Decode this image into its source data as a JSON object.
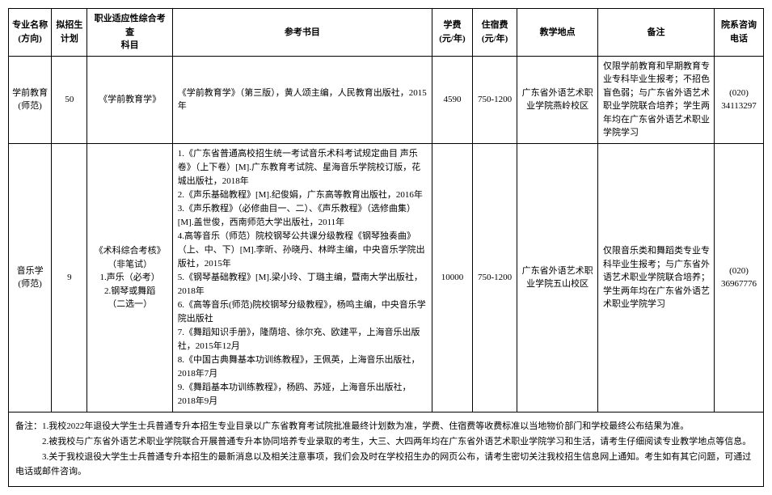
{
  "headers": {
    "major": "专业名称\n(方向)",
    "plan": "拟招生\n计划",
    "subject": "职业适应性综合考查\n科目",
    "books": "参考书目",
    "tuition": "学费\n(元/年)",
    "dorm": "住宿费\n(元/年)",
    "location": "教学地点",
    "remark": "备注",
    "phone": "院系咨询\n电话"
  },
  "rows": [
    {
      "major": "学前教育\n(师范)",
      "plan": "50",
      "subject": "《学前教育学》",
      "books": "《学前教育学》（第三版），黄人颂主编，人民教育出版社，2015年",
      "tuition": "4590",
      "dorm": "750-1200",
      "location": "广东省外语艺术职业学院燕岭校区",
      "remark": "仅限学前教育和早期教育专业专科毕业生报考；不招色盲色弱；与广东省外语艺术职业学院联合培养；学生两年均在广东省外语艺术职业学院学习",
      "phone": "(020)\n34113297"
    },
    {
      "major": "音乐学\n(师范)",
      "plan": "9",
      "subject": "《术科综合考核》\n（非笔试）\n1.声乐（必考）\n2.钢琴或舞蹈\n（二选一）",
      "books_list": [
        "1.《广东省普通高校招生统一考试音乐术科考试规定曲目 声乐卷》（上下卷）[M].广东教育考试院、星海音乐学院校订版，花城出版社，2018年",
        "2.《声乐基础教程》[M].纪俊娟，广东高等教育出版社，2016年",
        "3.《声乐教程》（必修曲目一、二）、《声乐教程》（选修曲集）[M].盖世俊，西南师范大学出版社，2011年",
        "4.高等音乐（师范）院校钢琴公共课分级教程《钢琴独奏曲》（上、中、下）[M].李昕、孙晓丹、林晔主编，中央音乐学院出版社，2015年",
        "5.《钢琴基础教程》[M].梁小玲、丁璐主编，暨南大学出版社，2018年",
        "6.《高等音乐(师范)院校钢琴分级教程》，杨鸣主编，中央音乐学院出版社",
        "7.《舞蹈知识手册》，隆荫培、徐尔充、欧建平，上海音乐出版社，2015年12月",
        "8.《中国古典舞基本功训练教程》，王佩英，上海音乐出版社，2018年7月",
        "9.《舞蹈基本功训练教程》，杨鸥、苏娅，上海音乐出版社，2018年9月"
      ],
      "tuition": "10000",
      "dorm": "750-1200",
      "location": "广东省外语艺术职业学院五山校区",
      "remark": "仅限音乐类和舞蹈类专业专科毕业生报考；与广东省外语艺术职业学院联合培养；学生两年均在广东省外语艺术职业学院学习",
      "phone": "(020)\n36967776"
    }
  ],
  "notes": [
    "备注：1.我校2022年退役大学生士兵普通专升本招生专业目录以广东省教育考试院批准最终计划数为准，学费、住宿费等收费标准以当地物价部门和学校最终公布结果为准。",
    "　　　2.被我校与广东省外语艺术职业学院联合开展普通专升本协同培养专业录取的考生，大三、大四两年均在广东省外语艺术职业学院学习和生活，请考生仔细阅读专业教学地点等信息。",
    "　　　3.关于我校退役大学生士兵普通专升本招生的最新消息以及相关注意事项，我们会及时在学校招生办的网页公布，请考生密切关注我校招生信息网上通知。考生如有其它问题，可通过电话或邮件咨询。"
  ]
}
